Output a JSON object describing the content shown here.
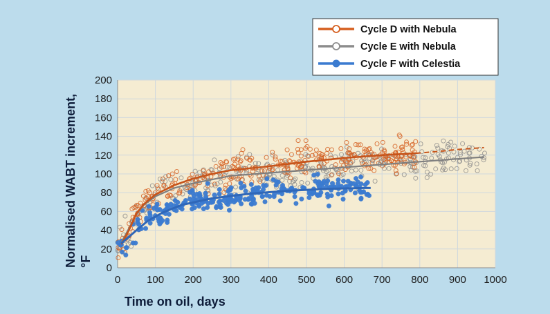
{
  "chart_data": {
    "type": "scatter",
    "title": "",
    "xlabel": "Time on oil, days",
    "ylabel": "Normalised WABT increment, °F",
    "xlim": [
      0,
      1000
    ],
    "ylim": [
      0,
      200
    ],
    "x_ticks": [
      0,
      100,
      200,
      300,
      400,
      500,
      600,
      700,
      800,
      900,
      1000
    ],
    "y_ticks": [
      0,
      20,
      40,
      60,
      80,
      100,
      120,
      140,
      160,
      180,
      200
    ],
    "grid": true,
    "legend_position": "top-right",
    "series": [
      {
        "name": "Cycle D with Nebula",
        "color": "#d55e1e",
        "marker": "open-circle",
        "trend": [
          [
            10,
            25
          ],
          [
            30,
            40
          ],
          [
            50,
            58
          ],
          [
            70,
            68
          ],
          [
            100,
            78
          ],
          [
            150,
            88
          ],
          [
            200,
            95
          ],
          [
            250,
            100
          ],
          [
            300,
            104
          ],
          [
            400,
            108
          ],
          [
            500,
            113
          ],
          [
            600,
            117
          ],
          [
            700,
            120
          ],
          [
            790,
            122
          ]
        ],
        "trend_extension_dashed": [
          [
            790,
            122
          ],
          [
            850,
            124
          ],
          [
            900,
            126
          ],
          [
            970,
            128
          ]
        ]
      },
      {
        "name": "Cycle E with Nebula",
        "color": "#8c8c8c",
        "marker": "open-circle",
        "trend": [
          [
            10,
            27
          ],
          [
            30,
            42
          ],
          [
            50,
            57
          ],
          [
            70,
            67
          ],
          [
            100,
            76
          ],
          [
            150,
            85
          ],
          [
            200,
            90
          ],
          [
            300,
            98
          ],
          [
            400,
            101
          ],
          [
            500,
            104
          ],
          [
            600,
            107
          ],
          [
            700,
            110
          ],
          [
            800,
            113
          ],
          [
            900,
            116
          ],
          [
            970,
            118
          ]
        ]
      },
      {
        "name": "Cycle F with Celestia",
        "color": "#3b7bd0",
        "marker": "filled-circle",
        "trend": [
          [
            10,
            26
          ],
          [
            30,
            33
          ],
          [
            50,
            40
          ],
          [
            80,
            50
          ],
          [
            120,
            59
          ],
          [
            170,
            67
          ],
          [
            250,
            74
          ],
          [
            350,
            79
          ],
          [
            450,
            82
          ],
          [
            550,
            84
          ],
          [
            650,
            85
          ],
          [
            670,
            85
          ]
        ]
      }
    ]
  },
  "legend": {
    "items": [
      "Cycle D with Nebula",
      "Cycle E with Nebula",
      "Cycle F with Celestia"
    ]
  },
  "axis_titles": {
    "x": "Time on oil, days",
    "y_line1": "Normalised WABT increment,",
    "y_line2": "°F"
  }
}
